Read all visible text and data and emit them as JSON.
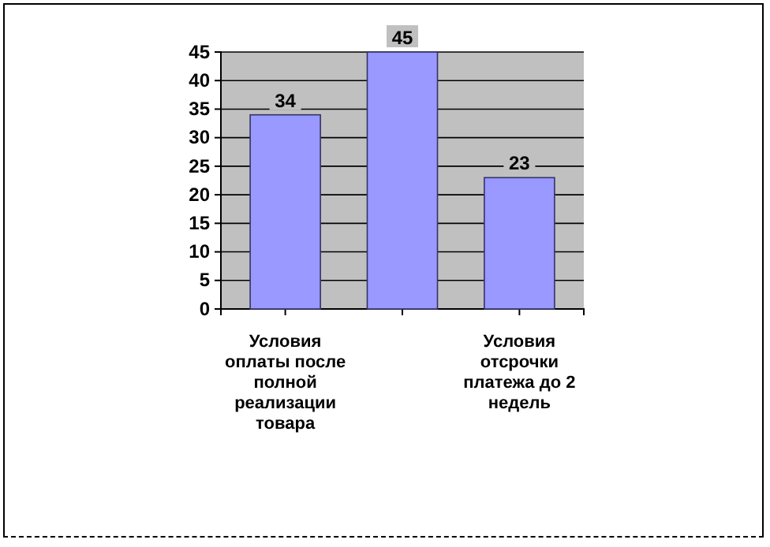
{
  "chart_data": {
    "type": "bar",
    "categories": [
      "Условия оплаты после полной реализации товара",
      null,
      "Условия отсрочки платежа до 2 недель"
    ],
    "values": [
      34,
      45,
      23
    ],
    "color": "#9999ff",
    "ylim": [
      0,
      45
    ],
    "yticks": [
      0,
      5,
      10,
      15,
      20,
      25,
      30,
      35,
      40,
      45
    ],
    "grid": "y",
    "data_labels": true
  }
}
